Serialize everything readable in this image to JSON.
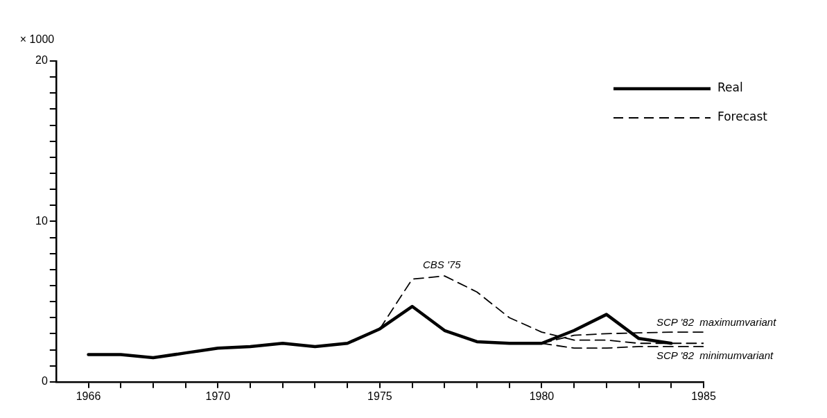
{
  "chart_data": {
    "type": "line",
    "ylabel": "× 1000",
    "xlim": [
      1965,
      1985
    ],
    "xticks": [
      {
        "value": 1966,
        "label": "1966"
      },
      {
        "value": 1967,
        "label": null
      },
      {
        "value": 1968,
        "label": null
      },
      {
        "value": 1969,
        "label": null
      },
      1970,
      {
        "value": 1971,
        "label": null
      },
      {
        "value": 1972,
        "label": null
      },
      {
        "value": 1973,
        "label": null
      },
      {
        "value": 1974,
        "label": null
      },
      1975,
      {
        "value": 1976,
        "label": null
      },
      {
        "value": 1977,
        "label": null
      },
      {
        "value": 1978,
        "label": null
      },
      {
        "value": 1979,
        "label": null
      },
      1980,
      {
        "value": 1981,
        "label": null
      },
      {
        "value": 1982,
        "label": null
      },
      {
        "value": 1983,
        "label": null
      },
      {
        "value": 1984,
        "label": null
      },
      1985
    ],
    "ylim": [
      0,
      20
    ],
    "yticks": [
      0,
      {
        "value": 1,
        "label": null
      },
      {
        "value": 2,
        "label": null
      },
      {
        "value": 3,
        "label": null
      },
      {
        "value": 4,
        "label": null
      },
      {
        "value": 5,
        "label": null
      },
      {
        "value": 6,
        "label": null
      },
      {
        "value": 7,
        "label": null
      },
      {
        "value": 8,
        "label": null
      },
      {
        "value": 9,
        "label": null
      },
      10,
      {
        "value": 11,
        "label": null
      },
      {
        "value": 12,
        "label": null
      },
      {
        "value": 13,
        "label": null
      },
      {
        "value": 14,
        "label": null
      },
      {
        "value": 15,
        "label": null
      },
      {
        "value": 16,
        "label": null
      },
      {
        "value": 17,
        "label": null
      },
      {
        "value": 18,
        "label": null
      },
      {
        "value": 19,
        "label": null
      },
      20
    ],
    "grid": false,
    "legend": "top right",
    "marker": "none",
    "series": [
      {
        "name": "Real",
        "color": "#000000",
        "line_style": "solid",
        "x": [
          1966,
          1967,
          1968,
          1969,
          1970,
          1971,
          1972,
          1973,
          1974,
          1975,
          1976,
          1977,
          1978,
          1979,
          1980,
          1981,
          1982,
          1983,
          1984
        ],
        "values": [
          1.7,
          1.7,
          1.5,
          1.8,
          2.1,
          2.2,
          2.4,
          2.2,
          2.4,
          3.3,
          4.7,
          3.2,
          2.5,
          2.4,
          2.4,
          3.2,
          4.2,
          2.7,
          2.4
        ]
      },
      {
        "name": "Forecast",
        "color": "#000000",
        "line_style": "dashed",
        "x": [
          1975,
          1976,
          1977,
          1978,
          1979,
          1980,
          1981,
          1982,
          1983,
          1984,
          1985
        ],
        "values": [
          3.3,
          6.4,
          6.6,
          5.6,
          4.0,
          3.1,
          2.6,
          2.6,
          2.4,
          2.4,
          2.4
        ]
      },
      {
        "color": "#000000",
        "line_style": "dashed",
        "x": [
          1980,
          1981,
          1982,
          1983,
          1984,
          1985
        ],
        "values": [
          2.4,
          2.9,
          3.0,
          3.05,
          3.1,
          3.1
        ]
      },
      {
        "color": "#000000",
        "line_style": "dashed",
        "x": [
          1980,
          1981,
          1982,
          1983,
          1984,
          1985
        ],
        "values": [
          2.4,
          2.1,
          2.1,
          2.2,
          2.2,
          2.2
        ]
      }
    ],
    "annotations": [
      "CBS '75",
      "SCP '82  maximumvariant",
      "SCP '82  minimumvariant"
    ]
  }
}
